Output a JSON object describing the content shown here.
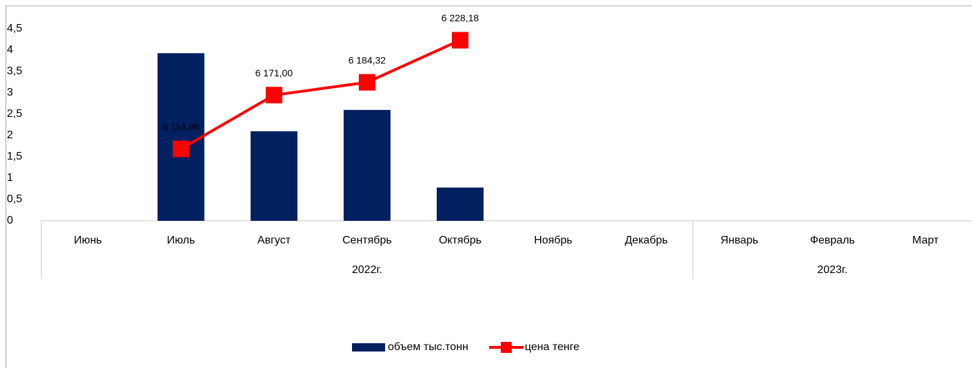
{
  "chart_data": {
    "type": "bar-line",
    "categories": [
      "Июнь",
      "Июль",
      "Август",
      "Сентябрь",
      "Октябрь",
      "Ноябрь",
      "Декабрь",
      "Январь",
      "Февраль",
      "Март"
    ],
    "groups": [
      "2022г.",
      "2023г."
    ],
    "series": [
      {
        "name": "объем тыс.тонн",
        "type": "bar",
        "color": "#002060",
        "values": [
          null,
          3.93,
          2.1,
          2.6,
          0.78,
          null,
          null,
          null,
          null,
          null
        ]
      },
      {
        "name": "цена тенге",
        "type": "line",
        "axis": "y2",
        "color": "#ff0000",
        "values": [
          null,
          6114.96,
          6171.0,
          6184.32,
          6228.18,
          null,
          null,
          null,
          null,
          null
        ],
        "value_labels": [
          null,
          "6 114,96",
          "6 171,00",
          "6 184,32",
          "6 228,18",
          null,
          null,
          null,
          null,
          null
        ]
      }
    ],
    "ylim": [
      0,
      4.5
    ],
    "yticks": [
      0,
      {
        "value": 0.5,
        "label": "0,5"
      },
      1,
      {
        "value": 1.5,
        "label": "1,5"
      },
      2,
      {
        "value": 2.5,
        "label": "2,5"
      },
      3,
      {
        "value": 3.5,
        "label": "3,5"
      },
      4,
      {
        "value": 4.5,
        "label": "4,5"
      }
    ],
    "y2lim": [
      6040,
      6240
    ],
    "legend": "bottom"
  }
}
